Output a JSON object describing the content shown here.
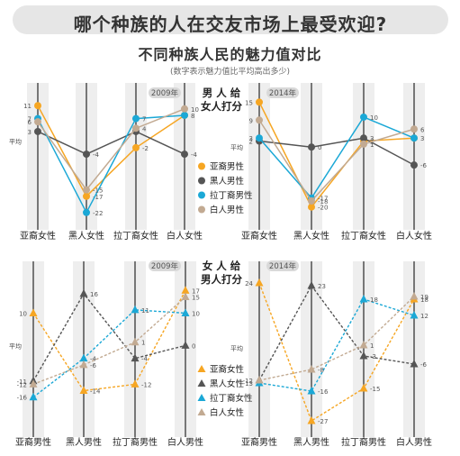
{
  "header": {
    "title": "哪个种族的人在交友市场上最受欢迎?",
    "subtitle": "不同种族人民的魅力值对比",
    "note": "(数字表示魅力值比平均高出多少)"
  },
  "colors": {
    "asian": "#f6a623",
    "black": "#555555",
    "latino": "#1ba8d6",
    "white": "#c2aa92",
    "axis": "#444444",
    "band": "#eeeeee"
  },
  "panels": [
    {
      "title": "男 人 给\n女人打分",
      "avg_label": "平均",
      "x_labels": [
        "亚裔女性",
        "黑人女性",
        "拉丁裔女性",
        "白人女性"
      ],
      "left_year": "2009年",
      "right_year": "2014年",
      "legend": [
        "亚裔男性",
        "黑人男性",
        "拉丁裔男性",
        "白人男性"
      ],
      "legend_markers": [
        "circle",
        "circle",
        "circle",
        "circle"
      ]
    },
    {
      "title": "女 人 给\n男人打分",
      "avg_label": "平均",
      "x_labels": [
        "亚裔男性",
        "黑人男性",
        "拉丁裔男性",
        "白人男性"
      ],
      "left_year": "2009年",
      "right_year": "2014年",
      "legend": [
        "亚裔女性",
        "黑人女性",
        "拉丁裔女性",
        "白人女性"
      ],
      "legend_markers": [
        "triangle",
        "triangle",
        "triangle",
        "triangle"
      ]
    }
  ],
  "chart_data": [
    {
      "type": "line",
      "title": "男人给女人打分 2009年",
      "categories": [
        "亚裔女性",
        "黑人女性",
        "拉丁裔女性",
        "白人女性"
      ],
      "ylim": [
        -24,
        13
      ],
      "series": [
        {
          "name": "亚裔男性",
          "values": [
            11,
            -17,
            -2,
            8
          ]
        },
        {
          "name": "黑人男性",
          "values": [
            3,
            -4,
            3,
            -4
          ]
        },
        {
          "name": "拉丁裔男性",
          "values": [
            7,
            -22,
            7,
            8
          ]
        },
        {
          "name": "白人男性",
          "values": [
            6,
            -15,
            4,
            10
          ]
        }
      ],
      "data_labels": [
        [
          "11",
          "-17",
          "-2",
          "8"
        ],
        [
          "3",
          "-4",
          "",
          "-4"
        ],
        [
          "7",
          "-22",
          "7",
          ""
        ],
        [
          "6",
          "-15",
          "4",
          "10"
        ]
      ]
    },
    {
      "type": "line",
      "title": "男人给女人打分 2014年",
      "categories": [
        "亚裔女性",
        "黑人女性",
        "拉丁裔女性",
        "白人女性"
      ],
      "ylim": [
        -24,
        16
      ],
      "series": [
        {
          "name": "亚裔男性",
          "values": [
            15,
            -20,
            2,
            3
          ]
        },
        {
          "name": "黑人男性",
          "values": [
            2,
            0,
            3,
            -6
          ]
        },
        {
          "name": "拉丁裔男性",
          "values": [
            3,
            -17,
            10,
            3
          ]
        },
        {
          "name": "白人男性",
          "values": [
            9,
            -18,
            1,
            6
          ]
        }
      ],
      "data_labels": [
        [
          "15",
          "-20",
          "2",
          "3"
        ],
        [
          "2",
          "0",
          "3",
          "-6"
        ],
        [
          "3",
          "-17",
          "10",
          ""
        ],
        [
          "9",
          "-18",
          "1",
          "6"
        ]
      ]
    },
    {
      "type": "line",
      "title": "女人给男人打分 2009年",
      "categories": [
        "亚裔男性",
        "黑人男性",
        "拉丁裔男性",
        "白人男性"
      ],
      "ylim": [
        -25,
        21
      ],
      "series": [
        {
          "name": "亚裔女性",
          "values": [
            10,
            -14,
            -12,
            17
          ]
        },
        {
          "name": "黑人女性",
          "values": [
            -11,
            16,
            -4,
            0
          ]
        },
        {
          "name": "拉丁裔女性",
          "values": [
            -16,
            -4,
            11,
            10
          ]
        },
        {
          "name": "白人女性",
          "values": [
            -12,
            -6,
            1,
            15
          ]
        }
      ],
      "data_labels": [
        [
          "10",
          "-14",
          "-12",
          "17"
        ],
        [
          "-11",
          "16",
          "-4",
          "0"
        ],
        [
          "-16",
          "-4",
          "11",
          "10"
        ],
        [
          "-12",
          "-6",
          "1",
          "15"
        ]
      ]
    },
    {
      "type": "line",
      "title": "女人给男人打分 2014年",
      "categories": [
        "亚裔男性",
        "黑人男性",
        "拉丁裔男性",
        "白人男性"
      ],
      "ylim": [
        -29,
        26
      ],
      "series": [
        {
          "name": "亚裔女性",
          "values": [
            24,
            -27,
            -15,
            18
          ]
        },
        {
          "name": "黑人女性",
          "values": [
            -12,
            23,
            -3,
            -6
          ]
        },
        {
          "name": "拉丁裔女性",
          "values": [
            -13,
            -16,
            18,
            12
          ]
        },
        {
          "name": "白人女性",
          "values": [
            -12,
            -8,
            1,
            19
          ]
        }
      ],
      "data_labels": [
        [
          "24",
          "-27",
          "-15",
          "18"
        ],
        [
          "-12",
          "23",
          "-3",
          "-6"
        ],
        [
          "-13",
          "-16",
          "18",
          "12"
        ],
        [
          "",
          "-8",
          "1",
          "19"
        ]
      ]
    }
  ]
}
